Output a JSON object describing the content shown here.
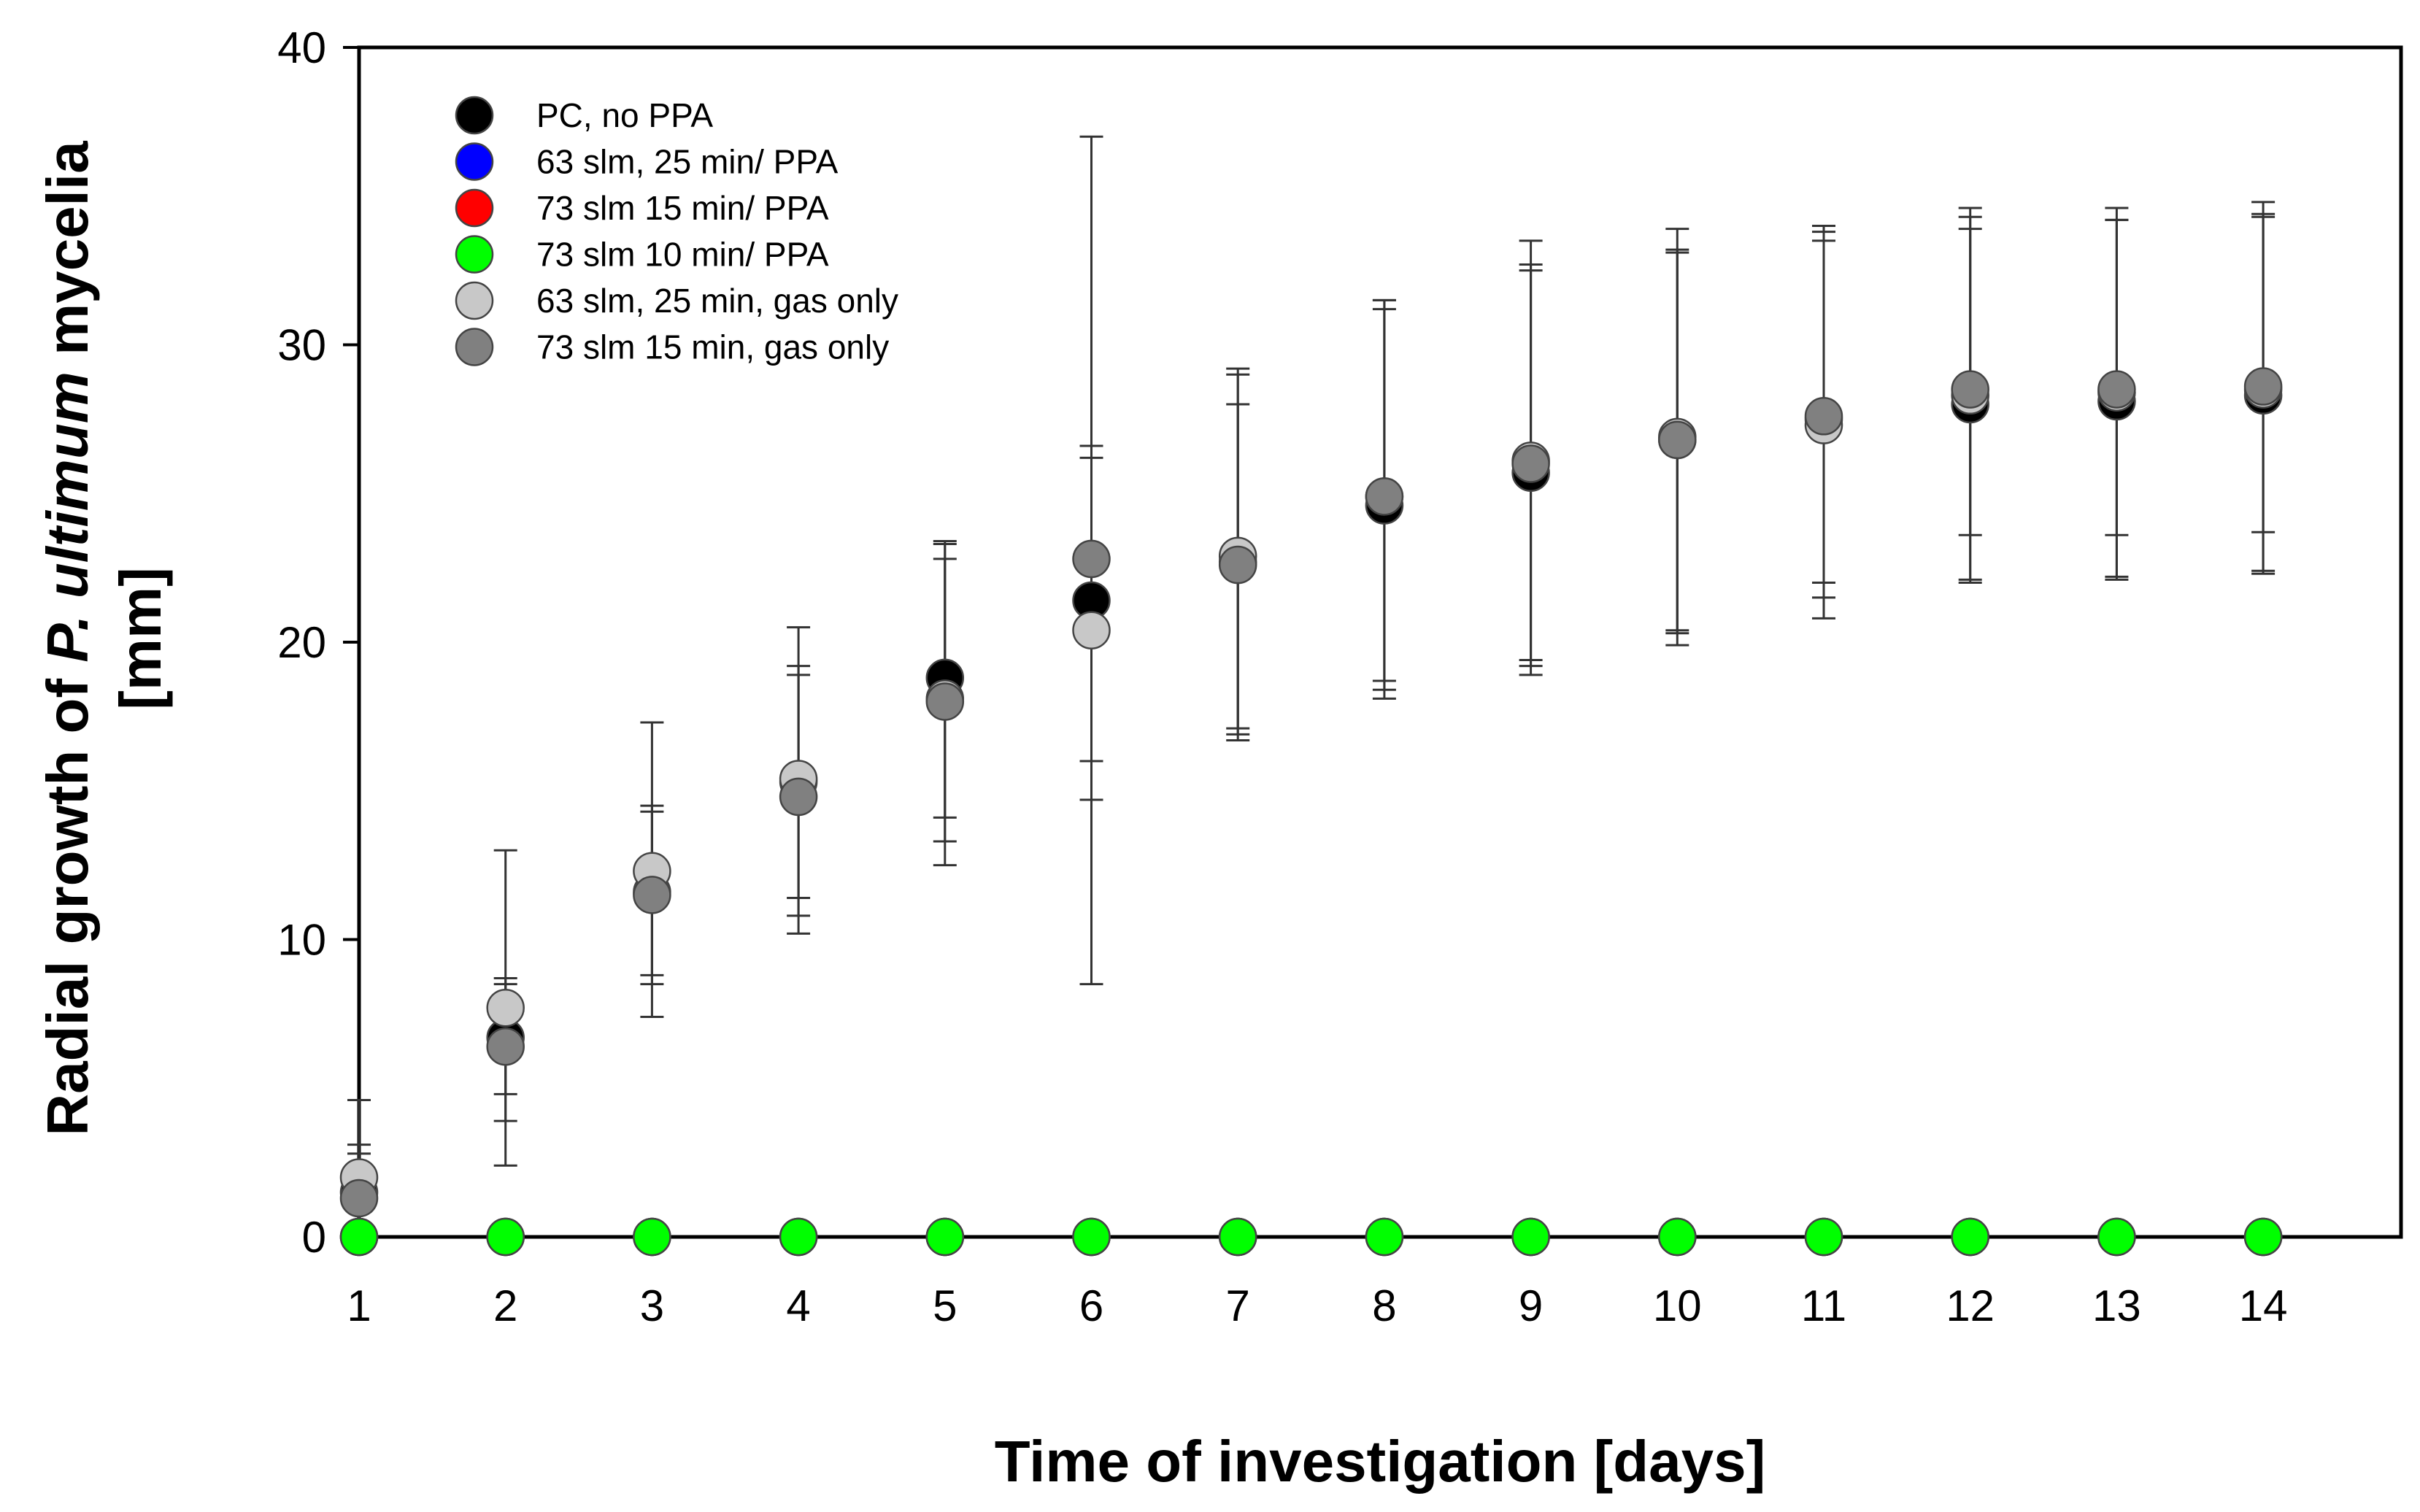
{
  "chart_data": {
    "type": "scatter",
    "title": "",
    "xlabel": "Time of investigation [days]",
    "ylabel_line1_prefix": "Radial growth of ",
    "ylabel_line1_italic": "P. ultimum",
    "ylabel_line1_suffix": " mycelia",
    "ylabel_line2": "[mm]",
    "xlim": [
      1,
      15
    ],
    "ylim": [
      0,
      40
    ],
    "x_ticks": [
      1,
      2,
      3,
      4,
      5,
      6,
      7,
      8,
      9,
      10,
      11,
      12,
      13,
      14
    ],
    "y_ticks": [
      0,
      10,
      20,
      30,
      40
    ],
    "legend_position": "top-left",
    "x": [
      1,
      2,
      3,
      4,
      5,
      6,
      7,
      8,
      9,
      10,
      11,
      12,
      13,
      14
    ],
    "series": [
      {
        "name": "PC, no PPA",
        "color": "#000000",
        "values": [
          1.5,
          6.7,
          11.6,
          15.3,
          18.8,
          21.4,
          22.7,
          24.6,
          25.7,
          26.8,
          27.5,
          28.0,
          28.1,
          28.3
        ],
        "err_low": [
          0,
          2.4,
          7.4,
          10.8,
          12.5,
          8.5,
          16.9,
          18.1,
          18.9,
          19.9,
          21.5,
          22.1,
          22.2,
          22.4
        ],
        "err_high": [
          3.1,
          8.7,
          14.3,
          19.2,
          23.4,
          37.0,
          28.0,
          31.2,
          32.5,
          33.1,
          33.5,
          33.9,
          34.2,
          34.4
        ]
      },
      {
        "name": "63 slm, 25 min/ PPA",
        "color": "#0000ff",
        "values": [
          0,
          0,
          0,
          0,
          0,
          0,
          0,
          0,
          0,
          0,
          0,
          0,
          0,
          0
        ]
      },
      {
        "name": "73 slm 15 min/ PPA",
        "color": "#ff0000",
        "values": [
          0,
          0,
          0,
          0,
          0,
          0,
          0,
          0,
          0,
          0,
          0,
          0,
          0,
          0
        ]
      },
      {
        "name": "73 slm 10 min/ PPA",
        "color": "#00ff00",
        "values": [
          0,
          0,
          0,
          0,
          0,
          0,
          0,
          0,
          0,
          0,
          0,
          0,
          0,
          0
        ]
      },
      {
        "name": "63 slm, 25 min, gas only",
        "color": "#c8c8c8",
        "values": [
          2.0,
          7.7,
          12.3,
          15.4,
          18.1,
          20.4,
          22.9,
          24.9,
          26.1,
          26.9,
          27.3,
          28.3,
          28.4,
          28.5
        ],
        "err_low": [
          0.2,
          3.9,
          8.8,
          11.4,
          13.3,
          14.7,
          16.7,
          18.7,
          19.4,
          20.4,
          20.8,
          22.0,
          22.1,
          22.3
        ],
        "err_high": [
          4.6,
          13.0,
          17.3,
          20.5,
          22.8,
          26.2,
          29.2,
          31.5,
          33.5,
          33.9,
          34.0,
          34.6,
          34.6,
          34.8
        ]
      },
      {
        "name": "73 slm 15 min, gas only",
        "color": "#808080",
        "values": [
          1.3,
          6.4,
          11.5,
          14.8,
          18.0,
          22.8,
          22.6,
          24.9,
          26.0,
          26.8,
          27.6,
          28.5,
          28.5,
          28.6
        ],
        "err_low": [
          0,
          4.8,
          8.5,
          10.2,
          14.1,
          16.0,
          17.1,
          18.4,
          19.2,
          20.3,
          22.0,
          23.6,
          23.6,
          23.7
        ],
        "err_high": [
          2.8,
          8.5,
          14.5,
          18.9,
          23.3,
          26.6,
          29.0,
          31.5,
          32.7,
          33.2,
          33.8,
          34.3,
          34.2,
          34.3
        ]
      }
    ]
  }
}
